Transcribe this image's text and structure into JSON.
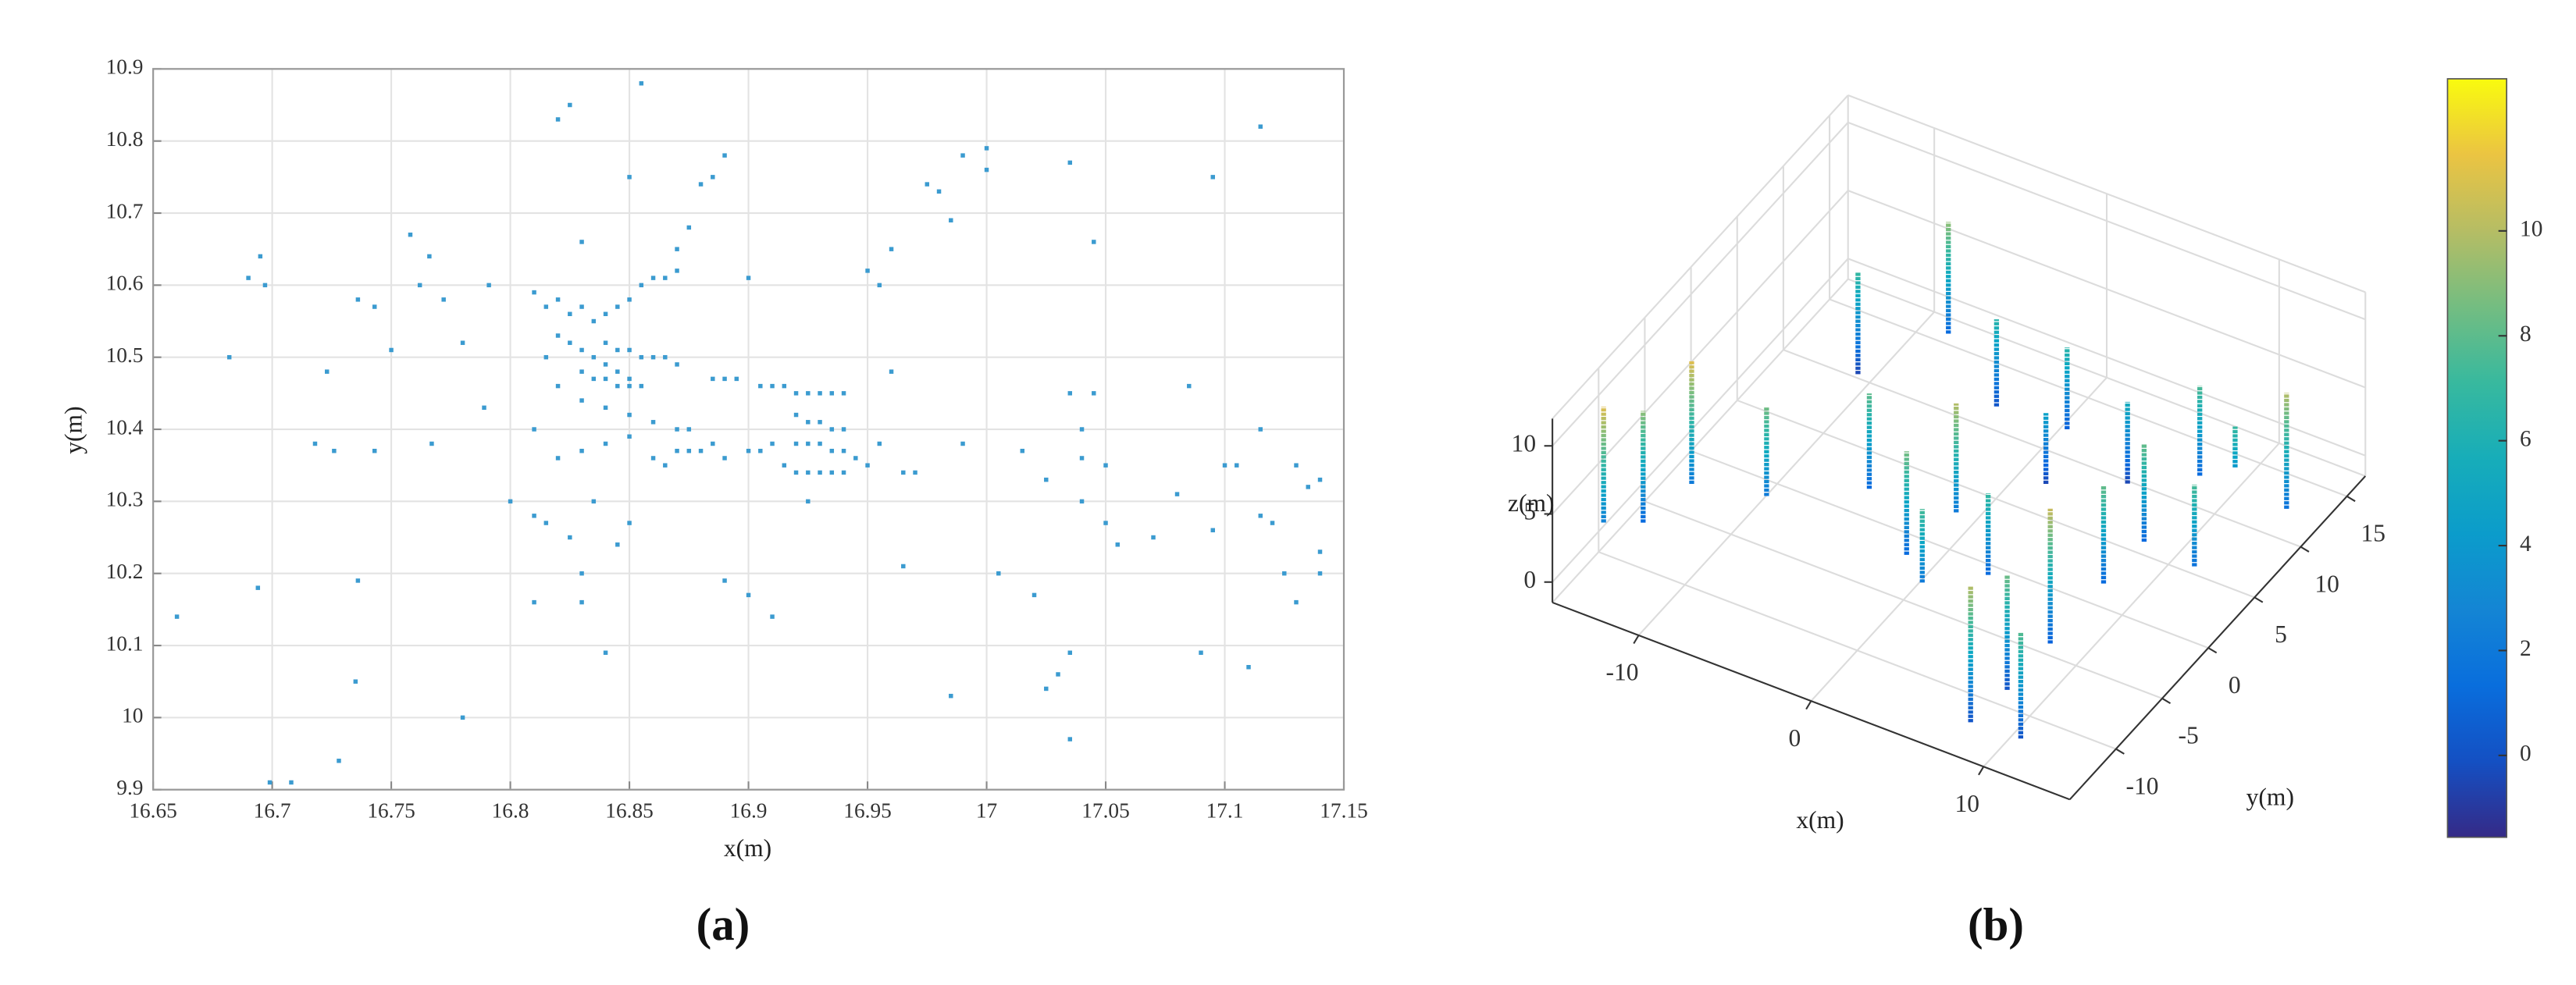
{
  "chart_data": [
    {
      "type": "scatter",
      "xlabel": "x(m)",
      "ylabel": "y(m)",
      "caption": "(a)",
      "color": "#3b9bd0",
      "grid": true,
      "xlim": [
        16.65,
        17.15
      ],
      "ylim": [
        9.9,
        10.9
      ],
      "xticks": [
        16.65,
        16.7,
        16.75,
        16.8,
        16.85,
        16.9,
        16.95,
        17,
        17.05,
        17.1,
        17.15
      ],
      "yticks": [
        9.9,
        10,
        10.1,
        10.2,
        10.3,
        10.4,
        10.5,
        10.6,
        10.7,
        10.8,
        10.9
      ],
      "x": [
        16.66,
        16.682,
        16.69,
        16.695,
        16.697,
        16.694,
        16.699,
        16.708,
        16.718,
        16.723,
        16.726,
        16.728,
        16.736,
        16.736,
        16.735,
        16.743,
        16.743,
        16.75,
        16.758,
        16.762,
        16.766,
        16.767,
        16.772,
        16.78,
        16.78,
        16.789,
        16.791,
        16.81,
        16.815,
        16.82,
        16.825,
        16.83,
        16.835,
        16.84,
        16.845,
        16.85,
        16.855,
        16.86,
        16.865,
        16.87,
        16.82,
        16.825,
        16.83,
        16.835,
        16.84,
        16.845,
        16.85,
        16.855,
        16.83,
        16.835,
        16.84,
        16.845,
        16.85,
        16.84,
        16.845,
        16.85,
        16.855,
        16.86,
        16.865,
        16.87,
        16.815,
        16.82,
        16.83,
        16.84,
        16.85,
        16.86,
        16.87,
        16.875,
        16.81,
        16.82,
        16.83,
        16.84,
        16.85,
        16.86,
        16.865,
        16.87,
        16.875,
        16.88,
        16.885,
        16.89,
        16.9,
        16.905,
        16.91,
        16.885,
        16.89,
        16.895,
        16.905,
        16.91,
        16.915,
        16.92,
        16.925,
        16.93,
        16.935,
        16.94,
        16.92,
        16.925,
        16.93,
        16.935,
        16.94,
        16.92,
        16.925,
        16.93,
        16.935,
        16.94,
        16.915,
        16.92,
        16.925,
        16.93,
        16.935,
        16.94,
        16.945,
        16.87,
        16.875,
        16.88,
        16.885,
        16.89,
        16.85,
        16.82,
        16.825,
        16.855,
        16.83,
        16.8,
        16.81,
        16.815,
        16.825,
        16.835,
        16.845,
        16.85,
        16.83,
        16.81,
        16.84,
        16.83,
        16.89,
        16.9,
        16.91,
        16.9,
        16.925,
        16.95,
        16.955,
        16.96,
        16.965,
        16.95,
        16.955,
        16.96,
        16.965,
        16.97,
        16.975,
        16.98,
        16.985,
        16.99,
        17.0,
        17.0,
        16.985,
        16.99,
        17.005,
        17.015,
        17.02,
        17.025,
        17.025,
        17.03,
        17.035,
        17.035,
        17.035,
        17.035,
        17.04,
        17.04,
        17.04,
        17.045,
        17.045,
        17.05,
        17.05,
        17.055,
        17.07,
        17.08,
        17.085,
        17.09,
        17.095,
        17.1,
        17.105,
        17.11,
        17.115,
        17.115,
        17.12,
        17.125,
        17.13,
        17.13,
        17.135,
        17.14,
        17.14,
        17.14,
        17.115,
        17.095
      ],
      "values": [
        10.14,
        10.5,
        10.61,
        10.64,
        10.6,
        10.18,
        9.91,
        9.91,
        10.38,
        10.48,
        10.37,
        9.94,
        10.58,
        10.19,
        10.05,
        10.57,
        10.37,
        10.51,
        10.67,
        10.6,
        10.64,
        10.38,
        10.58,
        10.52,
        10.0,
        10.43,
        10.6,
        10.59,
        10.57,
        10.58,
        10.56,
        10.57,
        10.55,
        10.56,
        10.57,
        10.58,
        10.6,
        10.61,
        10.61,
        10.62,
        10.53,
        10.52,
        10.51,
        10.5,
        10.49,
        10.48,
        10.47,
        10.46,
        10.48,
        10.47,
        10.47,
        10.46,
        10.46,
        10.52,
        10.51,
        10.51,
        10.5,
        10.5,
        10.5,
        10.49,
        10.5,
        10.46,
        10.44,
        10.43,
        10.42,
        10.41,
        10.4,
        10.4,
        10.4,
        10.36,
        10.37,
        10.38,
        10.39,
        10.36,
        10.35,
        10.37,
        10.37,
        10.37,
        10.38,
        10.36,
        10.37,
        10.37,
        10.38,
        10.47,
        10.47,
        10.47,
        10.46,
        10.46,
        10.46,
        10.45,
        10.45,
        10.45,
        10.45,
        10.45,
        10.42,
        10.41,
        10.41,
        10.4,
        10.4,
        10.38,
        10.38,
        10.38,
        10.37,
        10.37,
        10.35,
        10.34,
        10.34,
        10.34,
        10.34,
        10.34,
        10.36,
        10.65,
        10.68,
        10.74,
        10.75,
        10.78,
        10.75,
        10.83,
        10.85,
        10.88,
        10.66,
        10.3,
        10.28,
        10.27,
        10.25,
        10.3,
        10.24,
        10.27,
        10.2,
        10.16,
        10.09,
        10.16,
        10.19,
        10.17,
        10.14,
        10.61,
        10.3,
        10.35,
        10.38,
        10.48,
        10.21,
        10.62,
        10.6,
        10.65,
        10.34,
        10.34,
        10.74,
        10.73,
        10.69,
        10.78,
        10.79,
        10.76,
        10.03,
        10.38,
        10.2,
        10.37,
        10.17,
        10.33,
        10.04,
        10.06,
        10.45,
        10.77,
        9.97,
        10.09,
        10.4,
        10.36,
        10.3,
        10.45,
        10.66,
        10.35,
        10.27,
        10.24,
        10.25,
        10.31,
        10.46,
        10.09,
        10.75,
        10.35,
        10.35,
        10.07,
        10.4,
        10.82,
        10.27,
        10.2,
        10.16,
        10.35,
        10.32,
        10.33,
        10.2,
        10.23,
        10.28,
        10.26
      ]
    },
    {
      "type": "scatter3d",
      "xlabel": "x(m)",
      "ylabel": "y(m)",
      "zlabel": "z(m)",
      "caption": "(b)",
      "colormap": "parula",
      "grid": true,
      "xlim": [
        -15,
        15
      ],
      "ylim": [
        -15,
        17
      ],
      "zlim": [
        -1.5,
        12
      ],
      "xticks": [
        -10,
        0,
        10
      ],
      "yticks": [
        -10,
        -5,
        0,
        5,
        10,
        15
      ],
      "zticks": [
        0,
        5,
        10
      ],
      "clim": [
        -1.56,
        12.9
      ],
      "cticks": [
        0,
        2,
        4,
        6,
        8,
        10
      ],
      "x": [
        -13.8,
        -12.9,
        -11.8,
        -8.1,
        -10.3,
        -7.2,
        -4.5,
        0.7,
        -2.8,
        1.4,
        2.1,
        -0.3,
        2,
        4,
        8.5,
        8.8,
        11.3,
        9.1,
        9.3,
        5.6,
        9.4,
        12.8,
        9.2,
        14.5,
        12
      ],
      "y": [
        -11.7,
        -9.1,
        -5.9,
        -4.7,
        9.3,
        13.3,
        -0.3,
        -0.6,
        10.3,
        10.1,
        6.5,
        -4.1,
        -6.7,
        -3.3,
        -13.6,
        -10.2,
        -13.4,
        -6.1,
        -0.7,
        8.8,
        3.5,
        2.6,
        9.9,
        9.4,
        8.5
      ],
      "z": [
        [
          2.5,
          11
        ],
        [
          1,
          9.2
        ],
        [
          2,
          11
        ],
        [
          2,
          8.5
        ],
        [
          -0.5,
          7
        ],
        [
          1,
          9.2
        ],
        [
          1,
          8
        ],
        [
          2,
          10
        ],
        [
          0,
          6.4
        ],
        [
          0.5,
          6.5
        ],
        [
          -0.5,
          4.7
        ],
        [
          1,
          8.6
        ],
        [
          2,
          7.4
        ],
        [
          1,
          7
        ],
        [
          0,
          10
        ],
        [
          0,
          8.4
        ],
        [
          0,
          7.8
        ],
        [
          0.5,
          10.4
        ],
        [
          1,
          8.2
        ],
        [
          -0.5,
          5.5
        ],
        [
          1,
          8.2
        ],
        [
          1.5,
          7.5
        ],
        [
          1,
          7.6
        ],
        [
          1.5,
          10
        ],
        [
          4,
          7
        ]
      ]
    }
  ]
}
